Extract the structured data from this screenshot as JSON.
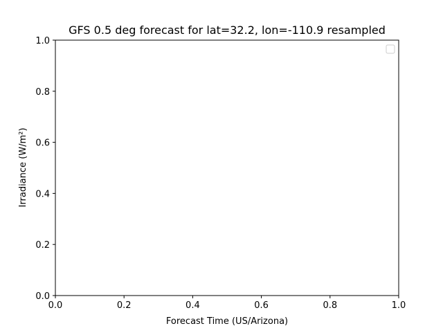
{
  "chart_data": {
    "type": "line",
    "title": "GFS 0.5 deg forecast for lat=32.2, lon=-110.9 resampled",
    "xlabel": "Forecast Time (US/Arizona)",
    "ylabel": "Irradiance (W/m²)",
    "xlim": [
      0,
      1
    ],
    "ylim": [
      0,
      1
    ],
    "x_ticks": [
      "0.0",
      "0.2",
      "0.4",
      "0.6",
      "0.8",
      "1.0"
    ],
    "y_ticks": [
      "0.0",
      "0.2",
      "0.4",
      "0.6",
      "0.8",
      "1.0"
    ],
    "series": [],
    "grid": false,
    "legend": {
      "placement": "top-right",
      "entries": []
    }
  }
}
